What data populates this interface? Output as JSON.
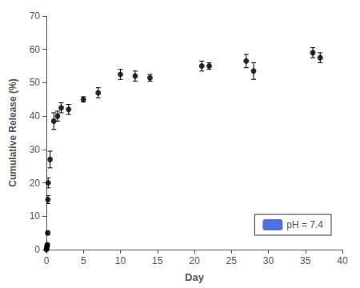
{
  "chart_data": {
    "type": "scatter",
    "xlabel": "Day",
    "ylabel": "Cumulative Release (%)",
    "x": [
      0.0,
      0.04,
      0.08,
      0.13,
      0.17,
      0.21,
      0.25,
      0.5,
      1.0,
      1.5,
      2.0,
      3.0,
      5.0,
      7.0,
      10.0,
      12.0,
      14.0,
      21.0,
      22.0,
      27.0,
      28.0,
      36.0,
      37.0
    ],
    "series": [
      {
        "name": "pH = 7.4",
        "color": "black",
        "marker": "circle",
        "values": [
          0.0,
          0.5,
          1.0,
          1.5,
          5.0,
          15.0,
          20.0,
          27.0,
          38.5,
          40.0,
          42.5,
          42.0,
          45.0,
          47.0,
          52.5,
          52.0,
          51.5,
          55.0,
          55.0,
          56.5,
          53.5,
          59.0,
          57.5
        ],
        "yerr": [
          0.0,
          0.2,
          0.2,
          0.2,
          0.5,
          1.2,
          1.5,
          2.5,
          2.5,
          1.5,
          1.5,
          1.5,
          0.8,
          1.5,
          1.5,
          1.5,
          1.0,
          1.5,
          1.0,
          2.0,
          2.5,
          1.5,
          1.5
        ]
      }
    ],
    "xlim": [
      0,
      40
    ],
    "ylim": [
      0,
      70
    ],
    "xticks": [
      0,
      5,
      10,
      15,
      20,
      25,
      30,
      35,
      40
    ],
    "yticks": [
      0,
      10,
      20,
      30,
      40,
      50,
      60,
      70
    ],
    "legend": "lower right",
    "grid": false
  }
}
